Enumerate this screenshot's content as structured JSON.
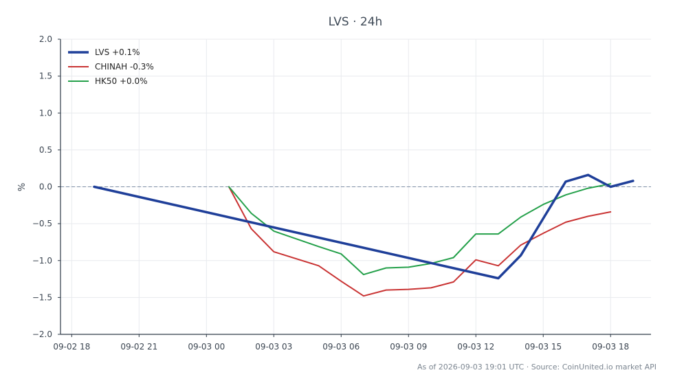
{
  "chart_data": {
    "type": "line",
    "title": "LVS · 24h",
    "xlabel": "",
    "ylabel": "%",
    "ylim": [
      -2.0,
      2.0
    ],
    "xlim_hours": [
      -0.5,
      25.8
    ],
    "x_ticks": [
      {
        "label": "09-02 18",
        "h": 0
      },
      {
        "label": "09-02 21",
        "h": 3
      },
      {
        "label": "09-03 00",
        "h": 6
      },
      {
        "label": "09-03 03",
        "h": 9
      },
      {
        "label": "09-03 06",
        "h": 12
      },
      {
        "label": "09-03 09",
        "h": 15
      },
      {
        "label": "09-03 12",
        "h": 18
      },
      {
        "label": "09-03 15",
        "h": 21
      },
      {
        "label": "09-03 18",
        "h": 24
      }
    ],
    "y_ticks": [
      "2.0",
      "1.5",
      "1.0",
      "0.5",
      "0.0",
      "−0.5",
      "−1.0",
      "−1.5",
      "−2.0"
    ],
    "y_tick_values": [
      2.0,
      1.5,
      1.0,
      0.5,
      0.0,
      -0.5,
      -1.0,
      -1.5,
      -2.0
    ],
    "baseline": 0.0,
    "grid": true,
    "legend_position": "top-left",
    "series": [
      {
        "name": "LVS +0.1%",
        "color": "#1f3f99",
        "width": 3.5,
        "points": [
          {
            "x": "09-02 19:00",
            "h": 1,
            "y": 0.0
          },
          {
            "x": "09-03 13:00",
            "h": 19,
            "y": -1.24
          },
          {
            "x": "09-03 14:00",
            "h": 20,
            "y": -0.93
          },
          {
            "x": "09-03 15:00",
            "h": 21,
            "y": -0.43
          },
          {
            "x": "09-03 16:00",
            "h": 22,
            "y": 0.07
          },
          {
            "x": "09-03 17:00",
            "h": 23,
            "y": 0.16
          },
          {
            "x": "09-03 18:00",
            "h": 24,
            "y": 0.0
          },
          {
            "x": "09-03 19:00",
            "h": 25,
            "y": 0.08
          }
        ]
      },
      {
        "name": "CHINAH -0.3%",
        "color": "#c93333",
        "width": 2,
        "points": [
          {
            "x": "09-03 01:00",
            "h": 7,
            "y": 0.0
          },
          {
            "x": "09-03 02:00",
            "h": 8,
            "y": -0.57
          },
          {
            "x": "09-03 03:00",
            "h": 9,
            "y": -0.88
          },
          {
            "x": "09-03 05:00",
            "h": 11,
            "y": -1.07
          },
          {
            "x": "09-03 06:00",
            "h": 12,
            "y": -1.28
          },
          {
            "x": "09-03 07:00",
            "h": 13,
            "y": -1.48
          },
          {
            "x": "09-03 08:00",
            "h": 14,
            "y": -1.4
          },
          {
            "x": "09-03 09:00",
            "h": 15,
            "y": -1.39
          },
          {
            "x": "09-03 10:00",
            "h": 16,
            "y": -1.37
          },
          {
            "x": "09-03 11:00",
            "h": 17,
            "y": -1.29
          },
          {
            "x": "09-03 12:00",
            "h": 18,
            "y": -0.99
          },
          {
            "x": "09-03 13:00",
            "h": 19,
            "y": -1.07
          },
          {
            "x": "09-03 14:00",
            "h": 20,
            "y": -0.79
          },
          {
            "x": "09-03 15:00",
            "h": 21,
            "y": -0.63
          },
          {
            "x": "09-03 16:00",
            "h": 22,
            "y": -0.48
          },
          {
            "x": "09-03 17:00",
            "h": 23,
            "y": -0.4
          },
          {
            "x": "09-03 18:00",
            "h": 24,
            "y": -0.34
          }
        ]
      },
      {
        "name": "HK50 +0.0%",
        "color": "#24a04a",
        "width": 2,
        "points": [
          {
            "x": "09-03 01:00",
            "h": 7,
            "y": 0.0
          },
          {
            "x": "09-03 02:00",
            "h": 8,
            "y": -0.36
          },
          {
            "x": "09-03 03:00",
            "h": 9,
            "y": -0.6
          },
          {
            "x": "09-03 05:00",
            "h": 11,
            "y": -0.81
          },
          {
            "x": "09-03 06:00",
            "h": 12,
            "y": -0.91
          },
          {
            "x": "09-03 07:00",
            "h": 13,
            "y": -1.19
          },
          {
            "x": "09-03 08:00",
            "h": 14,
            "y": -1.1
          },
          {
            "x": "09-03 09:00",
            "h": 15,
            "y": -1.09
          },
          {
            "x": "09-03 10:00",
            "h": 16,
            "y": -1.04
          },
          {
            "x": "09-03 11:00",
            "h": 17,
            "y": -0.96
          },
          {
            "x": "09-03 12:00",
            "h": 18,
            "y": -0.64
          },
          {
            "x": "09-03 13:00",
            "h": 19,
            "y": -0.64
          },
          {
            "x": "09-03 14:00",
            "h": 20,
            "y": -0.41
          },
          {
            "x": "09-03 15:00",
            "h": 21,
            "y": -0.24
          },
          {
            "x": "09-03 16:00",
            "h": 22,
            "y": -0.11
          },
          {
            "x": "09-03 17:00",
            "h": 23,
            "y": -0.02
          },
          {
            "x": "09-03 18:00",
            "h": 24,
            "y": 0.04
          }
        ]
      }
    ]
  },
  "footer": "As of 2026-09-03 19:01 UTC · Source: CoinUnited.io market API"
}
